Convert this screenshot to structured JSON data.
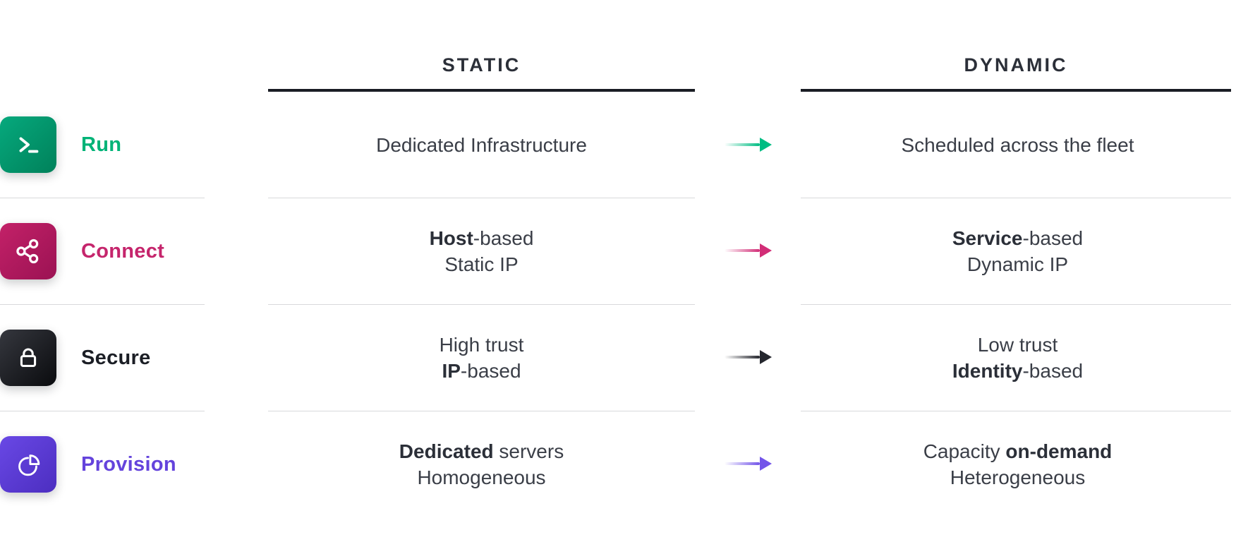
{
  "title_row": {
    "static": "STATIC",
    "dynamic": "DYNAMIC"
  },
  "divider_color": "#d8d9db",
  "header_underline_color": "#1a1d24",
  "rows": [
    {
      "id": "run",
      "label": "Run",
      "icon": "terminal-icon",
      "colors": {
        "label": "#00b377",
        "icon_from": "#06a97d",
        "icon_to": "#00815a",
        "arrow": "#00bd83"
      },
      "static_lines": [
        [
          {
            "text": "Dedicated Infrastructure"
          }
        ]
      ],
      "dynamic_lines": [
        [
          {
            "text": "Scheduled across the fleet"
          }
        ]
      ]
    },
    {
      "id": "connect",
      "label": "Connect",
      "icon": "share-icon",
      "colors": {
        "label": "#c5256c",
        "icon_from": "#c32168",
        "icon_to": "#9b1253",
        "arrow": "#d22d77"
      },
      "static_lines": [
        [
          {
            "text": "Host",
            "bold": true
          },
          {
            "text": "-based"
          }
        ],
        [
          {
            "text": "Static IP"
          }
        ]
      ],
      "dynamic_lines": [
        [
          {
            "text": "Service",
            "bold": true
          },
          {
            "text": "-based"
          }
        ],
        [
          {
            "text": "Dynamic IP"
          }
        ]
      ]
    },
    {
      "id": "secure",
      "label": "Secure",
      "icon": "lock-icon",
      "colors": {
        "label": "#1b1e25",
        "icon_from": "#35373e",
        "icon_to": "#0a0b0e",
        "arrow": "#25272e"
      },
      "static_lines": [
        [
          {
            "text": "High trust"
          }
        ],
        [
          {
            "text": "IP",
            "bold": true
          },
          {
            "text": "-based"
          }
        ]
      ],
      "dynamic_lines": [
        [
          {
            "text": "Low trust"
          }
        ],
        [
          {
            "text": "Identity",
            "bold": true
          },
          {
            "text": "-based"
          }
        ]
      ]
    },
    {
      "id": "provision",
      "label": "Provision",
      "icon": "pie-chart-icon",
      "colors": {
        "label": "#6443dc",
        "icon_from": "#6948e5",
        "icon_to": "#4c2ec0",
        "arrow": "#7355e9"
      },
      "static_lines": [
        [
          {
            "text": "Dedicated",
            "bold": true
          },
          {
            "text": " servers"
          }
        ],
        [
          {
            "text": "Homogeneous"
          }
        ]
      ],
      "dynamic_lines": [
        [
          {
            "text": "Capacity "
          },
          {
            "text": "on-demand",
            "bold": true
          }
        ],
        [
          {
            "text": "Heterogeneous"
          }
        ]
      ]
    }
  ]
}
